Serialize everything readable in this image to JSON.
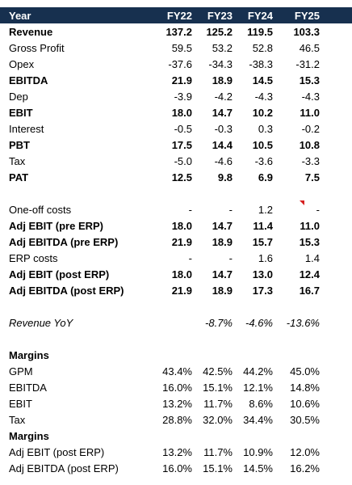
{
  "header": {
    "label": "Year",
    "cols": [
      "FY22",
      "FY23",
      "FY24",
      "FY25"
    ]
  },
  "pl": [
    {
      "label": "Revenue",
      "bold": true,
      "v": [
        "137.2",
        "125.2",
        "119.5",
        "103.3"
      ]
    },
    {
      "label": "Gross Profit",
      "bold": false,
      "v": [
        "59.5",
        "53.2",
        "52.8",
        "46.5"
      ]
    },
    {
      "label": "Opex",
      "bold": false,
      "v": [
        "-37.6",
        "-34.3",
        "-38.3",
        "-31.2"
      ]
    },
    {
      "label": "EBITDA",
      "bold": true,
      "v": [
        "21.9",
        "18.9",
        "14.5",
        "15.3"
      ]
    },
    {
      "label": "Dep",
      "bold": false,
      "v": [
        "-3.9",
        "-4.2",
        "-4.3",
        "-4.3"
      ]
    },
    {
      "label": "EBIT",
      "bold": true,
      "v": [
        "18.0",
        "14.7",
        "10.2",
        "11.0"
      ]
    },
    {
      "label": "Interest",
      "bold": false,
      "v": [
        "-0.5",
        "-0.3",
        "0.3",
        "-0.2"
      ]
    },
    {
      "label": "PBT",
      "bold": true,
      "v": [
        "17.5",
        "14.4",
        "10.5",
        "10.8"
      ]
    },
    {
      "label": "Tax",
      "bold": false,
      "v": [
        "-5.0",
        "-4.6",
        "-3.6",
        "-3.3"
      ]
    },
    {
      "label": "PAT",
      "bold": true,
      "v": [
        "12.5",
        "9.8",
        "6.9",
        "7.5"
      ]
    }
  ],
  "adjusted": [
    {
      "label": "One-off costs",
      "bold": false,
      "v": [
        "-",
        "-",
        "1.2",
        "-"
      ]
    },
    {
      "label": "Adj EBIT (pre ERP)",
      "bold": true,
      "v": [
        "18.0",
        "14.7",
        "11.4",
        "11.0"
      ]
    },
    {
      "label": "Adj EBITDA (pre ERP)",
      "bold": true,
      "v": [
        "21.9",
        "18.9",
        "15.7",
        "15.3"
      ]
    },
    {
      "label": "ERP costs",
      "bold": false,
      "v": [
        "-",
        "-",
        "1.6",
        "1.4"
      ]
    },
    {
      "label": "Adj EBIT (post ERP)",
      "bold": true,
      "v": [
        "18.0",
        "14.7",
        "13.0",
        "12.4"
      ]
    },
    {
      "label": "Adj EBITDA (post ERP)",
      "bold": true,
      "v": [
        "21.9",
        "18.9",
        "17.3",
        "16.7"
      ]
    }
  ],
  "yoy": {
    "label": "Revenue YoY",
    "v": [
      "",
      "-8.7%",
      "-4.6%",
      "-13.6%"
    ]
  },
  "margins_title": "Margins",
  "margins": [
    {
      "label": "GPM",
      "v": [
        "43.4%",
        "42.5%",
        "44.2%",
        "45.0%"
      ]
    },
    {
      "label": "EBITDA",
      "v": [
        "16.0%",
        "15.1%",
        "12.1%",
        "14.8%"
      ]
    },
    {
      "label": "EBIT",
      "v": [
        "13.2%",
        "11.7%",
        "8.6%",
        "10.6%"
      ]
    },
    {
      "label": "Tax",
      "v": [
        "28.8%",
        "32.0%",
        "34.4%",
        "30.5%"
      ]
    }
  ],
  "margins2_title": "Margins",
  "margins2": [
    {
      "label": "Adj EBIT (post ERP)",
      "v": [
        "13.2%",
        "11.7%",
        "10.9%",
        "12.0%"
      ]
    },
    {
      "label": "Adj EBITDA (post ERP)",
      "v": [
        "16.0%",
        "15.1%",
        "14.5%",
        "16.2%"
      ]
    }
  ],
  "colors": {
    "header_bg": "#17304f",
    "comment_marker": "#d61f1f"
  }
}
